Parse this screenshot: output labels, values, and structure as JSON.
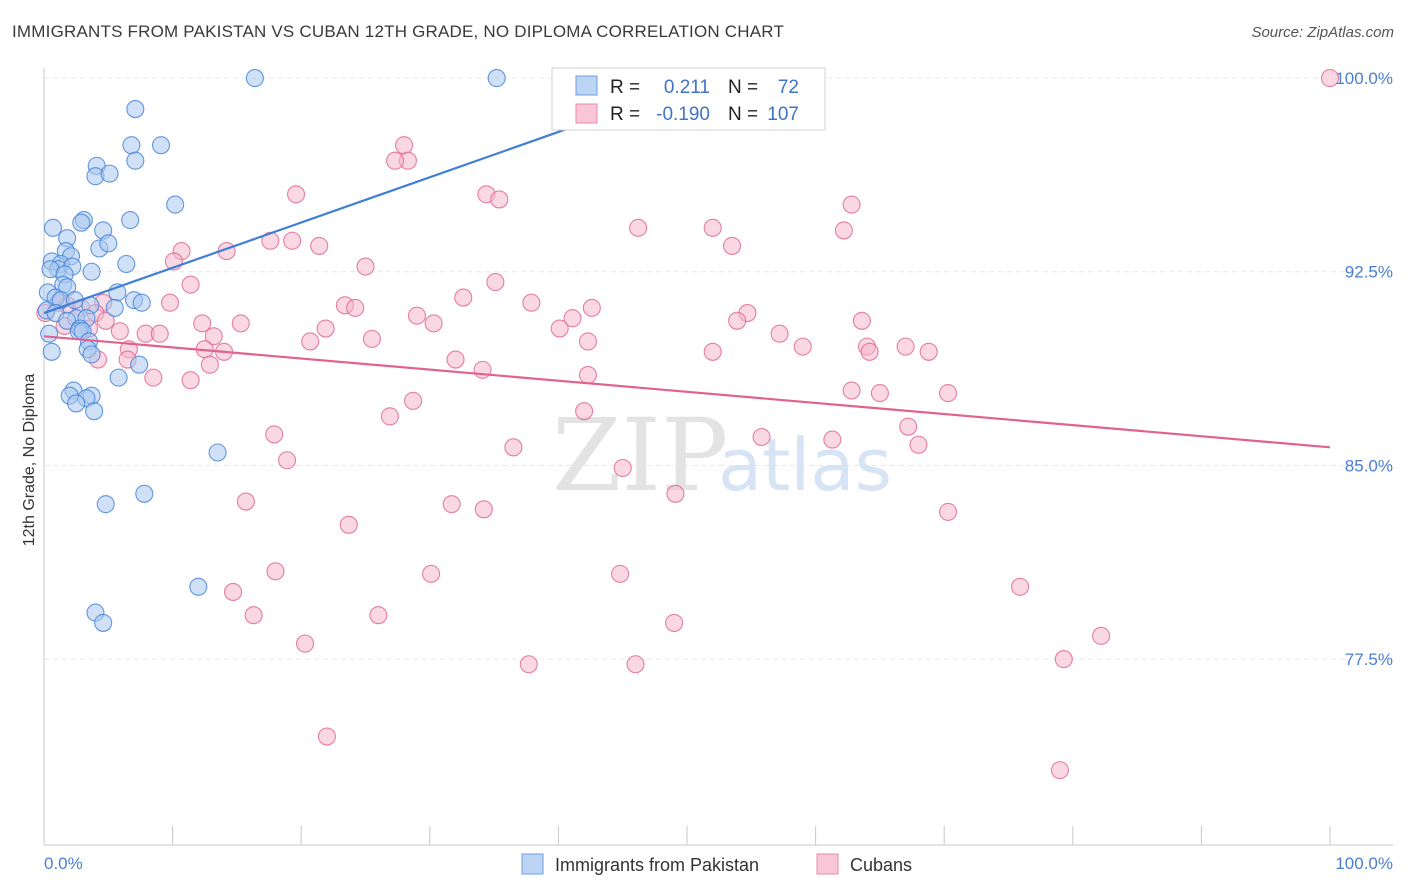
{
  "title": "IMMIGRANTS FROM PAKISTAN VS CUBAN 12TH GRADE, NO DIPLOMA CORRELATION CHART",
  "source": "Source: ZipAtlas.com",
  "watermark": {
    "zip": "ZIP",
    "atlas": "atlas"
  },
  "colors": {
    "blue": "#3f7fd6",
    "blue_fill": "#a9c8f0",
    "pink": "#e0628f",
    "pink_fill": "#f4b8cc",
    "tick": "#4a7fd0",
    "grid": "#e6e6e6"
  },
  "legend": {
    "rows": [
      {
        "r_label": "R =",
        "r_value": "0.211",
        "n_label": "N =",
        "n_value": "72"
      },
      {
        "r_label": "R =",
        "r_value": "-0.190",
        "n_label": "N =",
        "n_value": "107"
      }
    ]
  },
  "bottom_legend": [
    "Immigrants from Pakistan",
    "Cubans"
  ],
  "chart_data": {
    "type": "scatter",
    "title": "IMMIGRANTS FROM PAKISTAN VS CUBAN 12TH GRADE, NO DIPLOMA CORRELATION CHART",
    "xlabel": "",
    "ylabel": "12th Grade, No Diploma",
    "xlim": [
      0,
      100
    ],
    "ylim": [
      70.3,
      100.7
    ],
    "x_tick_labels": [
      "0.0%",
      "100.0%"
    ],
    "y_ticks": [
      100.0,
      92.5,
      85.0,
      77.5
    ],
    "y_tick_labels": [
      "100.0%",
      "92.5%",
      "85.0%",
      "77.5%"
    ],
    "series": [
      {
        "name": "Immigrants from Pakistan",
        "r": 0.211,
        "n": 72,
        "trend": {
          "x": [
            0,
            40.5
          ],
          "y": [
            90.9,
            98.0
          ]
        },
        "points": [
          [
            16.4,
            100.0
          ],
          [
            35.2,
            100.0
          ],
          [
            7.1,
            98.8
          ],
          [
            6.8,
            97.4
          ],
          [
            9.1,
            97.4
          ],
          [
            4.1,
            96.6
          ],
          [
            7.1,
            96.8
          ],
          [
            4.0,
            96.2
          ],
          [
            5.1,
            96.3
          ],
          [
            10.2,
            95.1
          ],
          [
            3.1,
            94.5
          ],
          [
            6.7,
            94.5
          ],
          [
            2.9,
            94.4
          ],
          [
            0.7,
            94.2
          ],
          [
            4.6,
            94.1
          ],
          [
            1.8,
            93.8
          ],
          [
            4.3,
            93.4
          ],
          [
            5.0,
            93.6
          ],
          [
            1.7,
            93.3
          ],
          [
            2.1,
            93.1
          ],
          [
            0.6,
            92.9
          ],
          [
            1.3,
            92.8
          ],
          [
            6.4,
            92.8
          ],
          [
            1.1,
            92.6
          ],
          [
            2.2,
            92.7
          ],
          [
            0.5,
            92.6
          ],
          [
            3.7,
            92.5
          ],
          [
            1.6,
            92.4
          ],
          [
            1.5,
            92.0
          ],
          [
            1.8,
            91.9
          ],
          [
            5.7,
            91.7
          ],
          [
            0.3,
            91.7
          ],
          [
            0.9,
            91.5
          ],
          [
            1.3,
            91.4
          ],
          [
            2.4,
            91.4
          ],
          [
            7.0,
            91.4
          ],
          [
            7.6,
            91.3
          ],
          [
            3.6,
            91.2
          ],
          [
            5.5,
            91.1
          ],
          [
            0.2,
            91.0
          ],
          [
            0.9,
            90.9
          ],
          [
            2.5,
            90.7
          ],
          [
            3.3,
            90.7
          ],
          [
            1.8,
            90.6
          ],
          [
            2.8,
            90.3
          ],
          [
            2.7,
            90.2
          ],
          [
            3.0,
            90.2
          ],
          [
            0.4,
            90.1
          ],
          [
            3.5,
            89.8
          ],
          [
            3.4,
            89.5
          ],
          [
            3.7,
            89.3
          ],
          [
            0.6,
            89.4
          ],
          [
            7.4,
            88.9
          ],
          [
            5.8,
            88.4
          ],
          [
            2.3,
            87.9
          ],
          [
            2.0,
            87.7
          ],
          [
            3.7,
            87.7
          ],
          [
            3.3,
            87.6
          ],
          [
            2.5,
            87.4
          ],
          [
            3.9,
            87.1
          ],
          [
            13.5,
            85.5
          ],
          [
            7.8,
            83.9
          ],
          [
            4.8,
            83.5
          ],
          [
            12.0,
            80.3
          ],
          [
            4.0,
            79.3
          ],
          [
            4.6,
            78.9
          ]
        ]
      },
      {
        "name": "Cubans",
        "r": -0.19,
        "n": 107,
        "trend": {
          "x": [
            0,
            100
          ],
          "y": [
            90.0,
            85.7
          ]
        },
        "points": [
          [
            100.0,
            100.0
          ],
          [
            28.0,
            97.4
          ],
          [
            28.3,
            96.8
          ],
          [
            27.3,
            96.8
          ],
          [
            19.6,
            95.5
          ],
          [
            34.4,
            95.5
          ],
          [
            35.4,
            95.3
          ],
          [
            62.8,
            95.1
          ],
          [
            46.2,
            94.2
          ],
          [
            52.0,
            94.2
          ],
          [
            62.2,
            94.1
          ],
          [
            17.6,
            93.7
          ],
          [
            19.3,
            93.7
          ],
          [
            21.4,
            93.5
          ],
          [
            53.5,
            93.5
          ],
          [
            10.7,
            93.3
          ],
          [
            14.2,
            93.3
          ],
          [
            10.1,
            92.9
          ],
          [
            25.0,
            92.7
          ],
          [
            35.1,
            92.1
          ],
          [
            11.4,
            92.0
          ],
          [
            32.6,
            91.5
          ],
          [
            37.9,
            91.3
          ],
          [
            23.4,
            91.2
          ],
          [
            4.6,
            91.3
          ],
          [
            24.2,
            91.1
          ],
          [
            9.8,
            91.3
          ],
          [
            42.6,
            91.1
          ],
          [
            54.7,
            90.9
          ],
          [
            1.1,
            91.3
          ],
          [
            1.8,
            91.2
          ],
          [
            2.9,
            91.1
          ],
          [
            0.1,
            90.9
          ],
          [
            4.0,
            90.9
          ],
          [
            29.0,
            90.8
          ],
          [
            41.1,
            90.7
          ],
          [
            63.6,
            90.6
          ],
          [
            4.8,
            90.6
          ],
          [
            53.9,
            90.6
          ],
          [
            12.3,
            90.5
          ],
          [
            15.3,
            90.5
          ],
          [
            30.3,
            90.5
          ],
          [
            1.6,
            90.4
          ],
          [
            21.9,
            90.3
          ],
          [
            40.1,
            90.3
          ],
          [
            3.5,
            90.3
          ],
          [
            5.9,
            90.2
          ],
          [
            57.2,
            90.1
          ],
          [
            7.9,
            90.1
          ],
          [
            9.0,
            90.1
          ],
          [
            13.2,
            90.0
          ],
          [
            25.5,
            89.9
          ],
          [
            20.7,
            89.8
          ],
          [
            42.3,
            89.8
          ],
          [
            64.0,
            89.6
          ],
          [
            59.0,
            89.6
          ],
          [
            67.0,
            89.6
          ],
          [
            6.6,
            89.5
          ],
          [
            12.5,
            89.5
          ],
          [
            14.0,
            89.4
          ],
          [
            68.8,
            89.4
          ],
          [
            64.2,
            89.4
          ],
          [
            52.0,
            89.4
          ],
          [
            32.0,
            89.1
          ],
          [
            4.2,
            89.1
          ],
          [
            6.5,
            89.1
          ],
          [
            12.9,
            88.9
          ],
          [
            34.1,
            88.7
          ],
          [
            42.3,
            88.5
          ],
          [
            8.5,
            88.4
          ],
          [
            11.4,
            88.3
          ],
          [
            62.8,
            87.9
          ],
          [
            65.0,
            87.8
          ],
          [
            70.3,
            87.8
          ],
          [
            28.7,
            87.5
          ],
          [
            42.0,
            87.1
          ],
          [
            26.9,
            86.9
          ],
          [
            67.2,
            86.5
          ],
          [
            17.9,
            86.2
          ],
          [
            55.8,
            86.1
          ],
          [
            61.3,
            86.0
          ],
          [
            68.0,
            85.8
          ],
          [
            36.5,
            85.7
          ],
          [
            18.9,
            85.2
          ],
          [
            45.0,
            84.9
          ],
          [
            49.1,
            83.9
          ],
          [
            15.7,
            83.6
          ],
          [
            31.7,
            83.5
          ],
          [
            34.2,
            83.3
          ],
          [
            70.3,
            83.2
          ],
          [
            23.7,
            82.7
          ],
          [
            18.0,
            80.9
          ],
          [
            30.1,
            80.8
          ],
          [
            44.8,
            80.8
          ],
          [
            75.9,
            80.3
          ],
          [
            14.7,
            80.1
          ],
          [
            16.3,
            79.2
          ],
          [
            26.0,
            79.2
          ],
          [
            49.0,
            78.9
          ],
          [
            20.3,
            78.1
          ],
          [
            82.2,
            78.4
          ],
          [
            79.3,
            77.5
          ],
          [
            37.7,
            77.3
          ],
          [
            46.0,
            77.3
          ],
          [
            22.0,
            74.5
          ],
          [
            79.0,
            73.2
          ]
        ]
      }
    ]
  }
}
